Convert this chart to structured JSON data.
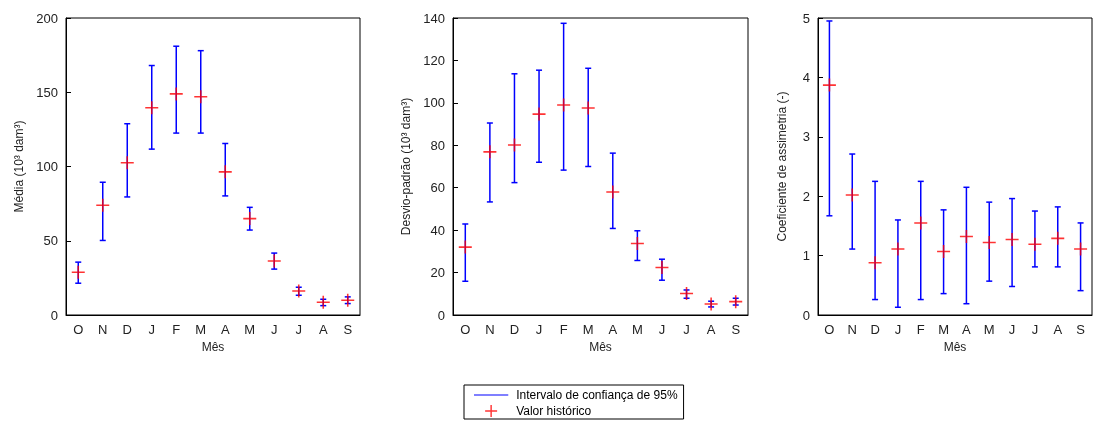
{
  "chart_data": [
    {
      "type": "scatter",
      "ylabel": "Média (10³ dam³)",
      "xlabel": "Mês",
      "categories": [
        "O",
        "N",
        "D",
        "J",
        "F",
        "M",
        "A",
        "M",
        "J",
        "J",
        "A",
        "S"
      ],
      "ylim": [
        0,
        200
      ],
      "yticks": [
        0,
        50,
        100,
        150,
        200
      ],
      "marker": "cross",
      "series": [
        {
          "color": "#ff0000",
          "values": [
            28.8,
            73.9,
            102.5,
            139.6,
            148.9,
            147,
            96.4,
            64.9,
            36.3,
            16.2,
            8.6,
            9.9
          ],
          "errors": [
            [
              21.4,
              35.6
            ],
            [
              50.2,
              89.4
            ],
            [
              79.5,
              128.8
            ],
            [
              111.7,
              168
            ],
            [
              122.5,
              181
            ],
            [
              122.5,
              178
            ],
            [
              80.2,
              115.5
            ],
            [
              57.2,
              72.5
            ],
            [
              30.9,
              41.7
            ],
            [
              13.3,
              18.7
            ],
            [
              6.3,
              10.6
            ],
            [
              7.7,
              12.2
            ]
          ]
        }
      ]
    },
    {
      "type": "scatter",
      "ylabel": "Desvio-padrão (10³ dam³)",
      "xlabel": "Mês",
      "categories": [
        "O",
        "N",
        "D",
        "J",
        "F",
        "M",
        "A",
        "M",
        "J",
        "J",
        "A",
        "S"
      ],
      "ylim": [
        0,
        140
      ],
      "yticks": [
        0,
        20,
        40,
        60,
        80,
        100,
        120,
        140
      ],
      "legend": "bottom",
      "marker": "cross",
      "annotations": [
        "Intervalo de confiança de 95%"
      ],
      "series": [
        {
          "name": "Valor histórico",
          "color": "#ff0000",
          "values": [
            32.0,
            76.9,
            80.1,
            94.7,
            99.0,
            97.6,
            58.0,
            33.7,
            22.4,
            10.1,
            5.2,
            6.3
          ],
          "errors": [
            [
              15.9,
              42.9
            ],
            [
              53.3,
              90.5
            ],
            [
              62.4,
              113.7
            ],
            [
              72.0,
              115.4
            ],
            [
              68.3,
              137.5
            ],
            [
              70.0,
              116.3
            ],
            [
              40.8,
              76.3
            ],
            [
              25.7,
              39.7
            ],
            [
              16.4,
              26.3
            ],
            [
              7.9,
              11.8
            ],
            [
              3.8,
              6.5
            ],
            [
              4.7,
              7.9
            ]
          ]
        }
      ]
    },
    {
      "type": "scatter",
      "ylabel": "Coeficiente de assimetria (-)",
      "xlabel": "Mês",
      "categories": [
        "O",
        "N",
        "D",
        "J",
        "F",
        "M",
        "A",
        "M",
        "J",
        "J",
        "A",
        "S"
      ],
      "ylim": [
        0,
        5
      ],
      "yticks": [
        0,
        1,
        2,
        3,
        4,
        5
      ],
      "marker": "cross",
      "series": [
        {
          "color": "#ff0000",
          "values": [
            3.87,
            2.02,
            0.88,
            1.11,
            1.55,
            1.07,
            1.32,
            1.22,
            1.27,
            1.19,
            1.29,
            1.11
          ],
          "errors": [
            [
              1.67,
              4.95
            ],
            [
              1.11,
              2.71
            ],
            [
              0.26,
              2.25
            ],
            [
              0.13,
              1.6
            ],
            [
              0.26,
              2.25
            ],
            [
              0.36,
              1.77
            ],
            [
              0.19,
              2.15
            ],
            [
              0.57,
              1.9
            ],
            [
              0.48,
              1.96
            ],
            [
              0.81,
              1.75
            ],
            [
              0.81,
              1.82
            ],
            [
              0.41,
              1.55
            ]
          ]
        }
      ]
    }
  ]
}
